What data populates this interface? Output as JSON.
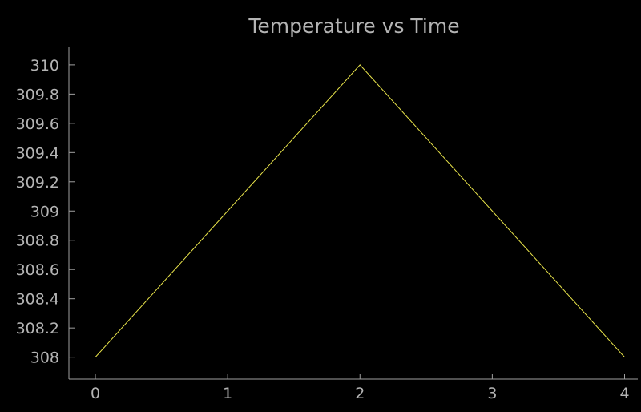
{
  "chart_data": {
    "type": "line",
    "title": "Temperature vs Time",
    "xlabel": "",
    "ylabel": "",
    "x": [
      0,
      1,
      2,
      3,
      4
    ],
    "series": [
      {
        "values": [
          308,
          309,
          310,
          309,
          308
        ]
      }
    ],
    "xlim": [
      -0.2,
      4.1
    ],
    "ylim": [
      307.85,
      310.12
    ],
    "xticks": [
      0,
      1,
      2,
      3,
      4
    ],
    "xtick_labels": [
      "0",
      "1",
      "2",
      "3",
      "4"
    ],
    "yticks": [
      308,
      308.2,
      308.4,
      308.6,
      308.8,
      309,
      309.2,
      309.4,
      309.6,
      309.8,
      310
    ],
    "ytick_labels": [
      "308",
      "308.2",
      "308.4",
      "308.6",
      "308.8",
      "309",
      "309.2",
      "309.4",
      "309.6",
      "309.8",
      "310"
    ],
    "grid": false,
    "legend": "none"
  },
  "colors": {
    "background": "#000000",
    "axis": "#a0a0a0",
    "text": "#b4b4b4",
    "series": "#e8e34a"
  }
}
